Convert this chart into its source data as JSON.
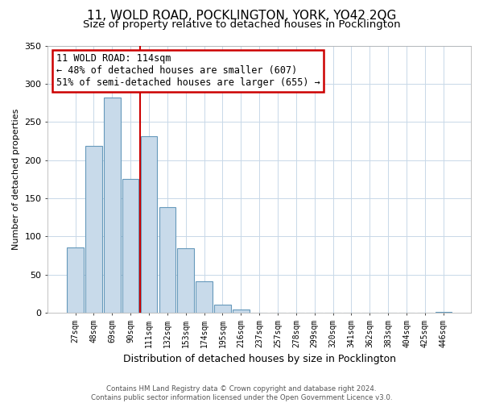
{
  "title": "11, WOLD ROAD, POCKLINGTON, YORK, YO42 2QG",
  "subtitle": "Size of property relative to detached houses in Pocklington",
  "xlabel": "Distribution of detached houses by size in Pocklington",
  "ylabel": "Number of detached properties",
  "bar_labels": [
    "27sqm",
    "48sqm",
    "69sqm",
    "90sqm",
    "111sqm",
    "132sqm",
    "153sqm",
    "174sqm",
    "195sqm",
    "216sqm",
    "237sqm",
    "257sqm",
    "278sqm",
    "299sqm",
    "320sqm",
    "341sqm",
    "362sqm",
    "383sqm",
    "404sqm",
    "425sqm",
    "446sqm"
  ],
  "bar_values": [
    86,
    219,
    282,
    175,
    231,
    138,
    85,
    41,
    11,
    4,
    0,
    0,
    0,
    0,
    0,
    0,
    0,
    0,
    0,
    0,
    1
  ],
  "bar_color": "#c8daea",
  "bar_edge_color": "#6699bb",
  "reference_line_label": "11 WOLD ROAD: 114sqm",
  "annotation_line1": "← 48% of detached houses are smaller (607)",
  "annotation_line2": "51% of semi-detached houses are larger (655) →",
  "annotation_box_color": "#ffffff",
  "annotation_box_edge": "#cc0000",
  "reference_line_color": "#cc0000",
  "ref_bar_index": 3,
  "ylim": [
    0,
    350
  ],
  "yticks": [
    0,
    50,
    100,
    150,
    200,
    250,
    300,
    350
  ],
  "footer_line1": "Contains HM Land Registry data © Crown copyright and database right 2024.",
  "footer_line2": "Contains public sector information licensed under the Open Government Licence v3.0.",
  "bg_color": "#ffffff",
  "plot_bg_color": "#ffffff",
  "grid_color": "#c8d8e8",
  "title_fontsize": 11,
  "subtitle_fontsize": 9.5
}
